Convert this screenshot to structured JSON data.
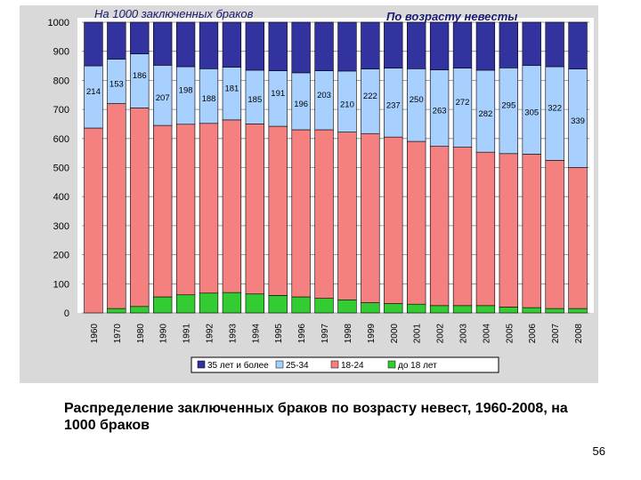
{
  "chart_data": {
    "type": "bar",
    "stacked": true,
    "title": "На 1000 заключенных браков",
    "subtitle": "По возрасту невесты",
    "categories": [
      "1960",
      "1970",
      "1980",
      "1990",
      "1991",
      "1992",
      "1993",
      "1994",
      "1995",
      "1996",
      "1997",
      "1998",
      "1999",
      "2000",
      "2001",
      "2002",
      "2003",
      "2004",
      "2005",
      "2006",
      "2007",
      "2008"
    ],
    "ylim": [
      0,
      1000
    ],
    "yticks": [
      0,
      100,
      200,
      300,
      400,
      500,
      600,
      700,
      800,
      900,
      1000
    ],
    "grid": true,
    "legend_position": "bottom",
    "series": [
      {
        "name": "до 18 лет",
        "color": "#33cc33",
        "values": [
          0,
          15,
          22,
          55,
          62,
          68,
          70,
          65,
          60,
          55,
          50,
          45,
          35,
          32,
          30,
          25,
          25,
          25,
          20,
          18,
          15,
          15
        ]
      },
      {
        "name": "18-24",
        "color": "#f48080",
        "values": [
          636,
          705,
          683,
          590,
          587,
          584,
          594,
          585,
          582,
          575,
          580,
          577,
          582,
          573,
          560,
          548,
          545,
          528,
          528,
          528,
          510,
          485
        ]
      },
      {
        "name": "25-34",
        "color": "#a8d0ff",
        "values": [
          214,
          153,
          186,
          207,
          198,
          188,
          181,
          185,
          191,
          196,
          203,
          210,
          222,
          237,
          250,
          263,
          272,
          282,
          295,
          305,
          322,
          339
        ]
      },
      {
        "name": "35 лет и более",
        "color": "#3333a0",
        "values": [
          150,
          127,
          109,
          148,
          153,
          160,
          155,
          165,
          167,
          174,
          167,
          168,
          161,
          158,
          160,
          164,
          158,
          165,
          157,
          149,
          153,
          161
        ]
      }
    ],
    "data_labels": {
      "series": "25-34",
      "values": [
        "214",
        "153",
        "186",
        "207",
        "198",
        "188",
        "181",
        "185",
        "191",
        "196",
        "203",
        "210",
        "222",
        "237",
        "250",
        "263",
        "272",
        "282",
        "295",
        "305",
        "322",
        "339"
      ]
    }
  },
  "legend_items": [
    {
      "label": "35 лет и более",
      "color": "#3333a0"
    },
    {
      "label": "25-34",
      "color": "#a8d0ff"
    },
    {
      "label": "18-24",
      "color": "#f48080"
    },
    {
      "label": "до 18 лет",
      "color": "#33cc33"
    }
  ],
  "caption": "Распределение заключенных браков по возрасту невест, 1960-2008, на 1000 браков",
  "page_number": "56"
}
